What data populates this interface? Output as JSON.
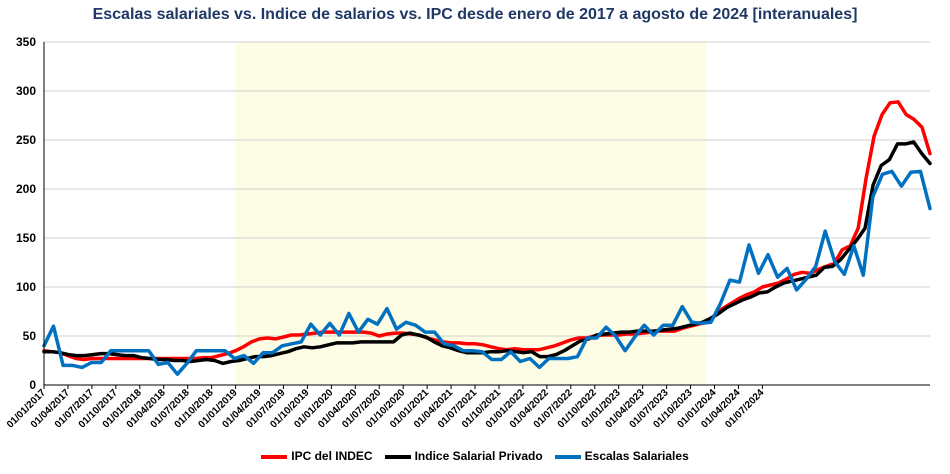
{
  "chart_data": {
    "type": "line",
    "title": "Escalas salariales  vs. Indice de salarios  vs. IPC desde enero de 2017 a agosto de 2024 [interanuales]",
    "xlabel": "",
    "ylabel": "",
    "ylim": [
      0,
      350
    ],
    "yticks": [
      "0",
      "50",
      "100",
      "150",
      "200",
      "250",
      "300",
      "350"
    ],
    "grid": true,
    "legend_position": "bottom",
    "x_tick_labels": [
      "01/01/2017",
      "01/04/2017",
      "01/07/2017",
      "01/10/2017",
      "01/01/2018",
      "01/04/2018",
      "01/07/2018",
      "01/10/2018",
      "01/01/2019",
      "01/04/2019",
      "01/07/2019",
      "01/10/2019",
      "01/01/2020",
      "01/04/2020",
      "01/07/2020",
      "01/10/2020",
      "01/01/2021",
      "01/04/2021",
      "01/07/2021",
      "01/10/2021",
      "01/01/2022",
      "01/04/2022",
      "01/07/2022",
      "01/10/2022",
      "01/01/2023",
      "01/04/2023",
      "01/07/2023",
      "01/10/2023",
      "01/01/2024",
      "01/04/2024",
      "01/07/2024"
    ],
    "highlight_range": {
      "from": "01/01/2019",
      "to": "01/12/2023",
      "color": "#fdfde6"
    },
    "series": [
      {
        "name": "IPC del INDEC",
        "color": "#ff0000",
        "values": [
          35,
          34,
          33,
          30,
          27,
          26,
          27,
          27,
          27,
          27,
          27,
          27,
          27,
          27,
          27,
          27,
          27,
          27,
          27,
          27,
          28,
          28,
          30,
          32,
          35,
          39,
          44,
          47,
          48,
          47,
          49,
          51,
          51,
          52,
          53,
          54,
          54,
          54,
          54,
          54,
          54,
          53,
          50,
          52,
          53,
          53,
          52,
          51,
          48,
          46,
          44,
          43,
          43,
          42,
          42,
          41,
          39,
          37,
          36,
          37,
          36,
          36,
          36,
          38,
          40,
          43,
          46,
          48,
          48,
          50,
          51,
          51,
          51,
          52,
          52,
          53,
          54,
          55,
          55,
          55,
          58,
          60,
          62,
          64,
          71,
          78,
          83,
          88,
          92,
          95,
          100,
          102,
          104,
          108,
          113,
          115,
          114,
          118,
          121,
          124,
          138,
          142,
          160,
          211,
          254,
          276,
          288,
          289,
          276,
          271,
          263,
          236
        ]
      },
      {
        "name": "Indice Salarial Privado",
        "color": "#000000",
        "values": [
          34,
          34,
          33,
          31,
          30,
          30,
          31,
          32,
          32,
          31,
          30,
          30,
          28,
          27,
          26,
          26,
          25,
          25,
          24,
          25,
          26,
          25,
          22,
          24,
          25,
          27,
          29,
          29,
          30,
          32,
          34,
          37,
          39,
          38,
          39,
          41,
          43,
          43,
          43,
          44,
          44,
          44,
          44,
          44,
          51,
          53,
          51,
          49,
          44,
          40,
          38,
          35,
          33,
          33,
          33,
          34,
          34,
          35,
          34,
          33,
          34,
          29,
          29,
          31,
          35,
          40,
          45,
          47,
          51,
          52,
          53,
          54,
          54,
          55,
          55,
          55,
          56,
          57,
          58,
          60,
          62,
          64,
          68,
          73,
          79,
          83,
          87,
          90,
          94,
          95,
          100,
          104,
          106,
          108,
          110,
          112,
          120,
          121,
          128,
          138,
          148,
          160,
          204,
          224,
          230,
          246,
          246,
          248,
          236,
          226
        ]
      },
      {
        "name": "Escalas Salariales",
        "color": "#0070c0",
        "values": [
          40,
          60,
          20,
          20,
          18,
          23,
          23,
          35,
          35,
          35,
          35,
          35,
          21,
          23,
          11,
          22,
          35,
          35,
          35,
          35,
          27,
          30,
          22,
          33,
          33,
          40,
          42,
          44,
          62,
          51,
          63,
          51,
          73,
          54,
          67,
          62,
          78,
          57,
          64,
          61,
          54,
          54,
          42,
          40,
          35,
          35,
          34,
          26,
          26,
          34,
          24,
          27,
          18,
          27,
          27,
          27,
          29,
          48,
          48,
          59,
          50,
          35,
          49,
          61,
          51,
          61,
          61,
          80,
          64,
          63,
          64,
          83,
          107,
          105,
          143,
          114,
          133,
          110,
          119,
          97,
          108,
          121,
          157,
          126,
          113,
          142,
          112,
          192,
          215,
          218,
          203,
          217,
          218,
          180
        ]
      }
    ]
  }
}
